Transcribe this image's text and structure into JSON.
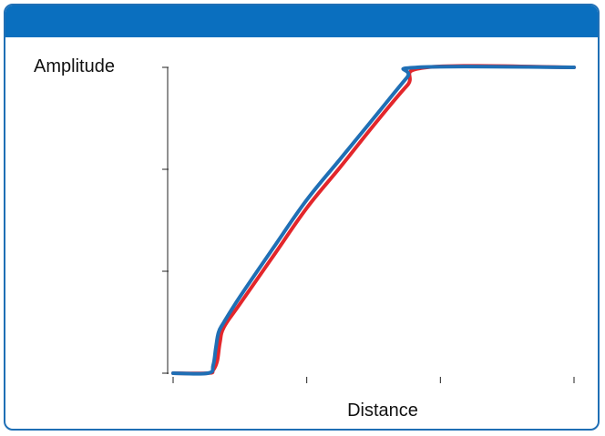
{
  "chart_data": {
    "type": "line",
    "title": "",
    "xlabel": "Distance",
    "ylabel": "Amplitude",
    "xlim": [
      0,
      3
    ],
    "ylim": [
      0,
      3
    ],
    "x_ticks": [
      0,
      1,
      2,
      3
    ],
    "y_ticks": [
      0,
      1,
      2,
      3
    ],
    "grid": false,
    "series": [
      {
        "color": "#e3262b",
        "points": [
          [
            0.0,
            0.0
          ],
          [
            0.26,
            0.0
          ],
          [
            0.3,
            0.03
          ],
          [
            0.33,
            0.12
          ],
          [
            0.35,
            0.3
          ],
          [
            0.38,
            0.45
          ],
          [
            0.5,
            0.68
          ],
          [
            0.75,
            1.15
          ],
          [
            1.0,
            1.62
          ],
          [
            1.25,
            2.02
          ],
          [
            1.5,
            2.43
          ],
          [
            1.75,
            2.82
          ],
          [
            1.9,
            3.0
          ],
          [
            3.0,
            3.0
          ]
        ]
      },
      {
        "color": "#1f6fb5",
        "points": [
          [
            0.0,
            0.0
          ],
          [
            0.26,
            0.0
          ],
          [
            0.3,
            0.08
          ],
          [
            0.32,
            0.25
          ],
          [
            0.34,
            0.4
          ],
          [
            0.38,
            0.5
          ],
          [
            0.5,
            0.75
          ],
          [
            0.75,
            1.23
          ],
          [
            1.0,
            1.7
          ],
          [
            1.25,
            2.1
          ],
          [
            1.5,
            2.5
          ],
          [
            1.75,
            2.9
          ],
          [
            1.83,
            3.0
          ],
          [
            3.0,
            3.0
          ]
        ]
      }
    ],
    "colors": {
      "header": "#0a6fbf",
      "border": "#1f6fb5"
    }
  }
}
